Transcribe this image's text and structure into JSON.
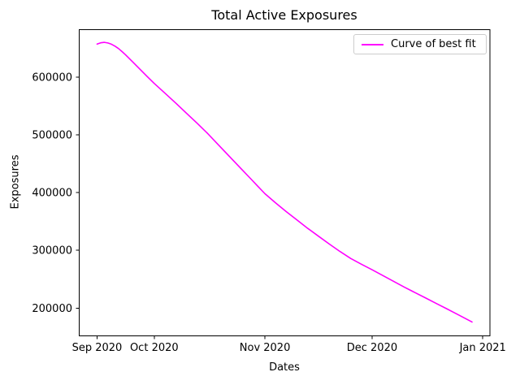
{
  "figure": {
    "title": "Total Active Exposures",
    "xlabel": "Dates",
    "ylabel": "Exposures",
    "background_color": "#ffffff",
    "spine_color": "#000000",
    "text_color": "#000000"
  },
  "legend": {
    "label": "Curve of best fit",
    "line_color": "#ff00ff",
    "border_color": "#cccccc",
    "position": "upper right"
  },
  "chart_data": {
    "type": "line",
    "title": "Total Active Exposures",
    "xlabel": "Dates",
    "ylabel": "Exposures",
    "grid": false,
    "legend_position": "upper right",
    "x_unit": "days since 2020-09-01",
    "xlim": [
      9,
      124
    ],
    "ylim": [
      152000,
      682000
    ],
    "x_ticks": [
      {
        "value": 14,
        "label": "Sep 2020"
      },
      {
        "value": 30,
        "label": "Oct 2020"
      },
      {
        "value": 61,
        "label": "Nov 2020"
      },
      {
        "value": 91,
        "label": "Dec 2020"
      },
      {
        "value": 122,
        "label": "Jan 2021"
      }
    ],
    "y_ticks": [
      {
        "value": 200000,
        "label": "200000"
      },
      {
        "value": 300000,
        "label": "300000"
      },
      {
        "value": 400000,
        "label": "400000"
      },
      {
        "value": 500000,
        "label": "500000"
      },
      {
        "value": 600000,
        "label": "600000"
      }
    ],
    "series": [
      {
        "name": "Curve of best fit",
        "color": "#ff00ff",
        "line_width": 1.6,
        "points": [
          [
            14,
            657000
          ],
          [
            15,
            659200
          ],
          [
            16,
            660000
          ],
          [
            17,
            659000
          ],
          [
            18,
            656800
          ],
          [
            19,
            653500
          ],
          [
            20,
            649200
          ],
          [
            21,
            644000
          ],
          [
            22,
            638300
          ],
          [
            24,
            626000
          ],
          [
            26,
            613500
          ],
          [
            28,
            601000
          ],
          [
            30,
            589000
          ],
          [
            33,
            572000
          ],
          [
            36,
            555000
          ],
          [
            39,
            537500
          ],
          [
            42,
            520000
          ],
          [
            45,
            502000
          ],
          [
            48,
            482500
          ],
          [
            51,
            463000
          ],
          [
            54,
            443500
          ],
          [
            57,
            424000
          ],
          [
            59,
            411000
          ],
          [
            61,
            398000
          ],
          [
            64,
            382000
          ],
          [
            67,
            367000
          ],
          [
            70,
            352500
          ],
          [
            73,
            338000
          ],
          [
            76,
            324500
          ],
          [
            79,
            311000
          ],
          [
            82,
            298000
          ],
          [
            85,
            286000
          ],
          [
            88,
            276000
          ],
          [
            91,
            266500
          ],
          [
            94,
            256500
          ],
          [
            97,
            246500
          ],
          [
            100,
            236500
          ],
          [
            103,
            227000
          ],
          [
            106,
            217500
          ],
          [
            109,
            208000
          ],
          [
            112,
            198500
          ],
          [
            115,
            189000
          ],
          [
            117,
            182500
          ],
          [
            119,
            176000
          ]
        ]
      }
    ]
  }
}
